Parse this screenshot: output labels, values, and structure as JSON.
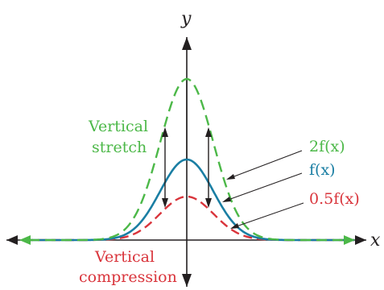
{
  "axes": {
    "x_label": "x",
    "y_label": "y"
  },
  "annotations": {
    "stretch_line1": "Vertical",
    "stretch_line2": "stretch",
    "compression_line1": "Vertical",
    "compression_line2": "compression"
  },
  "curve_labels": {
    "two_f": "2f(x)",
    "f": "f(x)",
    "half_f": "0.5f(x)"
  },
  "colors": {
    "stretch": "#4cb848",
    "base": "#1a7ea3",
    "compression": "#d9343b",
    "axis": "#231f20"
  },
  "icons": [
    "arrow-up-icon",
    "arrow-down-icon",
    "arrow-left-icon",
    "arrow-right-icon"
  ]
}
